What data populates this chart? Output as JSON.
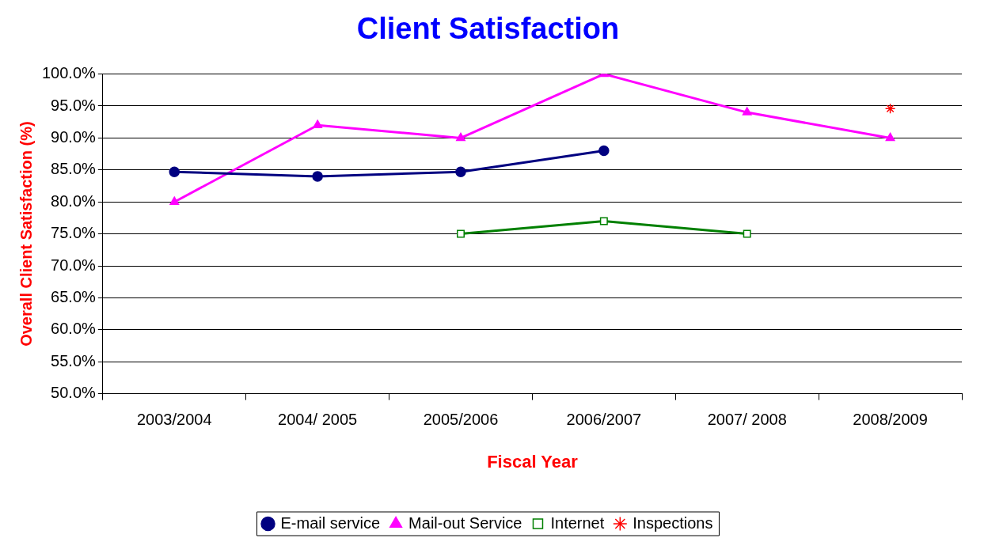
{
  "chart_data": {
    "type": "line",
    "title": "Client Satisfaction",
    "xlabel": "Fiscal Year",
    "ylabel": "Overall Client Satisfaction (%)",
    "categories": [
      "2003/2004",
      "2004/ 2005",
      "2005/2006",
      "2006/2007",
      "2007/ 2008",
      "2008/2009"
    ],
    "series": [
      {
        "name": "E-mail service",
        "color": "#000080",
        "marker": "circle",
        "values": [
          84.7,
          84.0,
          84.7,
          88.0,
          null,
          null
        ]
      },
      {
        "name": "Mail-out Service",
        "color": "#ff00ff",
        "marker": "triangle",
        "values": [
          80.0,
          92.0,
          90.0,
          100.0,
          94.0,
          90.0
        ]
      },
      {
        "name": "Internet",
        "color": "#008000",
        "marker": "square",
        "values": [
          null,
          null,
          75.0,
          77.0,
          75.0,
          null
        ]
      },
      {
        "name": "Inspections",
        "color": "#ff0000",
        "marker": "cross",
        "values": [
          null,
          null,
          null,
          null,
          null,
          94.6
        ]
      }
    ],
    "ylim": [
      50,
      100
    ],
    "yticks": [
      {
        "value": 50,
        "label": "50.0%"
      },
      {
        "value": 55,
        "label": "55.0%"
      },
      {
        "value": 60,
        "label": "60.0%"
      },
      {
        "value": 65,
        "label": "65.0%"
      },
      {
        "value": 70,
        "label": "70.0%"
      },
      {
        "value": 75,
        "label": "75.0%"
      },
      {
        "value": 80,
        "label": "80.0%"
      },
      {
        "value": 85,
        "label": "85.0%"
      },
      {
        "value": 90,
        "label": "90.0%"
      },
      {
        "value": 95,
        "label": "95.0%"
      },
      {
        "value": 100,
        "label": "100.0%"
      }
    ],
    "grid": "y",
    "legend": "bottom"
  }
}
